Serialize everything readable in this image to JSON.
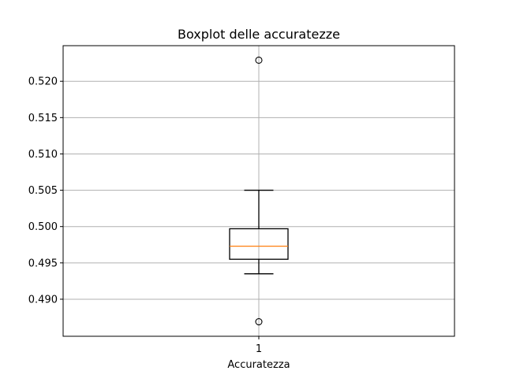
{
  "chart_data": {
    "type": "boxplot",
    "title": "Boxplot delle accuratezze",
    "xlabel": "Accuratezza",
    "ylabel": "",
    "categories": [
      "1"
    ],
    "ylim": [
      0.4849,
      0.5249
    ],
    "yticks": [
      0.49,
      0.495,
      0.5,
      0.505,
      0.51,
      0.515,
      0.52
    ],
    "ytick_labels": [
      "0.490",
      "0.495",
      "0.500",
      "0.505",
      "0.510",
      "0.515",
      "0.520"
    ],
    "grid": true,
    "boxes": [
      {
        "category": "1",
        "whisker_low": 0.4935,
        "q1": 0.4955,
        "median": 0.4973,
        "q3": 0.4997,
        "whisker_high": 0.505,
        "outliers": [
          0.4869,
          0.5229
        ]
      }
    ],
    "colors": {
      "box": "#000000",
      "median": "#ff7f0e",
      "grid": "#b0b0b0"
    }
  }
}
